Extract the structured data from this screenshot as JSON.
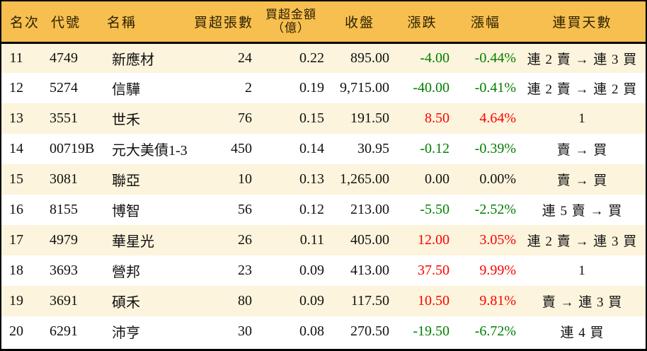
{
  "colors": {
    "header_bg": "#F6BF4F",
    "row_bg": "#FFFFFF",
    "row_alt_bg": "#FCF4DC",
    "up_text": "#FE0000",
    "down_text": "#007E00",
    "flat_text": "#111111",
    "border": "#000000"
  },
  "table": {
    "columns": [
      {
        "key": "rank",
        "label": "名次",
        "align": "center"
      },
      {
        "key": "code",
        "label": "代號",
        "align": "left"
      },
      {
        "key": "name",
        "label": "名稱",
        "align": "left"
      },
      {
        "key": "volume",
        "label": "買超張數",
        "align": "right"
      },
      {
        "key": "amount",
        "label": "買超金額",
        "label2": "（億）",
        "align": "right"
      },
      {
        "key": "close",
        "label": "收盤",
        "align": "right"
      },
      {
        "key": "change",
        "label": "漲跌",
        "align": "right",
        "colored": true
      },
      {
        "key": "change_pct",
        "label": "漲幅",
        "align": "right",
        "colored": true
      },
      {
        "key": "streak",
        "label": "連買天數",
        "align": "center"
      }
    ],
    "rows": [
      {
        "rank": "11",
        "code": "4749",
        "name": "新應材",
        "volume": "24",
        "amount": "0.22",
        "close": "895.00",
        "change": "-4.00",
        "change_pct": "-0.44%",
        "streak": "連 2 賣 → 連 3 買",
        "trend": "down"
      },
      {
        "rank": "12",
        "code": "5274",
        "name": "信驊",
        "volume": "2",
        "amount": "0.19",
        "close": "9,715.00",
        "change": "-40.00",
        "change_pct": "-0.41%",
        "streak": "連 2 賣 → 連 2 買",
        "trend": "down"
      },
      {
        "rank": "13",
        "code": "3551",
        "name": "世禾",
        "volume": "76",
        "amount": "0.15",
        "close": "191.50",
        "change": "8.50",
        "change_pct": "4.64%",
        "streak": "1",
        "trend": "up"
      },
      {
        "rank": "14",
        "code": "00719B",
        "name": "元大美債1-3",
        "volume": "450",
        "amount": "0.14",
        "close": "30.95",
        "change": "-0.12",
        "change_pct": "-0.39%",
        "streak": "賣 → 買",
        "trend": "down"
      },
      {
        "rank": "15",
        "code": "3081",
        "name": "聯亞",
        "volume": "10",
        "amount": "0.13",
        "close": "1,265.00",
        "change": "0.00",
        "change_pct": "0.00%",
        "streak": "賣 → 買",
        "trend": "flat"
      },
      {
        "rank": "16",
        "code": "8155",
        "name": "博智",
        "volume": "56",
        "amount": "0.12",
        "close": "213.00",
        "change": "-5.50",
        "change_pct": "-2.52%",
        "streak": "連 5 賣 → 買",
        "trend": "down"
      },
      {
        "rank": "17",
        "code": "4979",
        "name": "華星光",
        "volume": "26",
        "amount": "0.11",
        "close": "405.00",
        "change": "12.00",
        "change_pct": "3.05%",
        "streak": "連 2 賣 → 連 3 買",
        "trend": "up"
      },
      {
        "rank": "18",
        "code": "3693",
        "name": "營邦",
        "volume": "23",
        "amount": "0.09",
        "close": "413.00",
        "change": "37.50",
        "change_pct": "9.99%",
        "streak": "1",
        "trend": "up"
      },
      {
        "rank": "19",
        "code": "3691",
        "name": "碩禾",
        "volume": "80",
        "amount": "0.09",
        "close": "117.50",
        "change": "10.50",
        "change_pct": "9.81%",
        "streak": "賣 → 連 3 買",
        "trend": "up"
      },
      {
        "rank": "20",
        "code": "6291",
        "name": "沛亨",
        "volume": "30",
        "amount": "0.08",
        "close": "270.50",
        "change": "-19.50",
        "change_pct": "-6.72%",
        "streak": "連 4 買",
        "trend": "down"
      }
    ]
  }
}
